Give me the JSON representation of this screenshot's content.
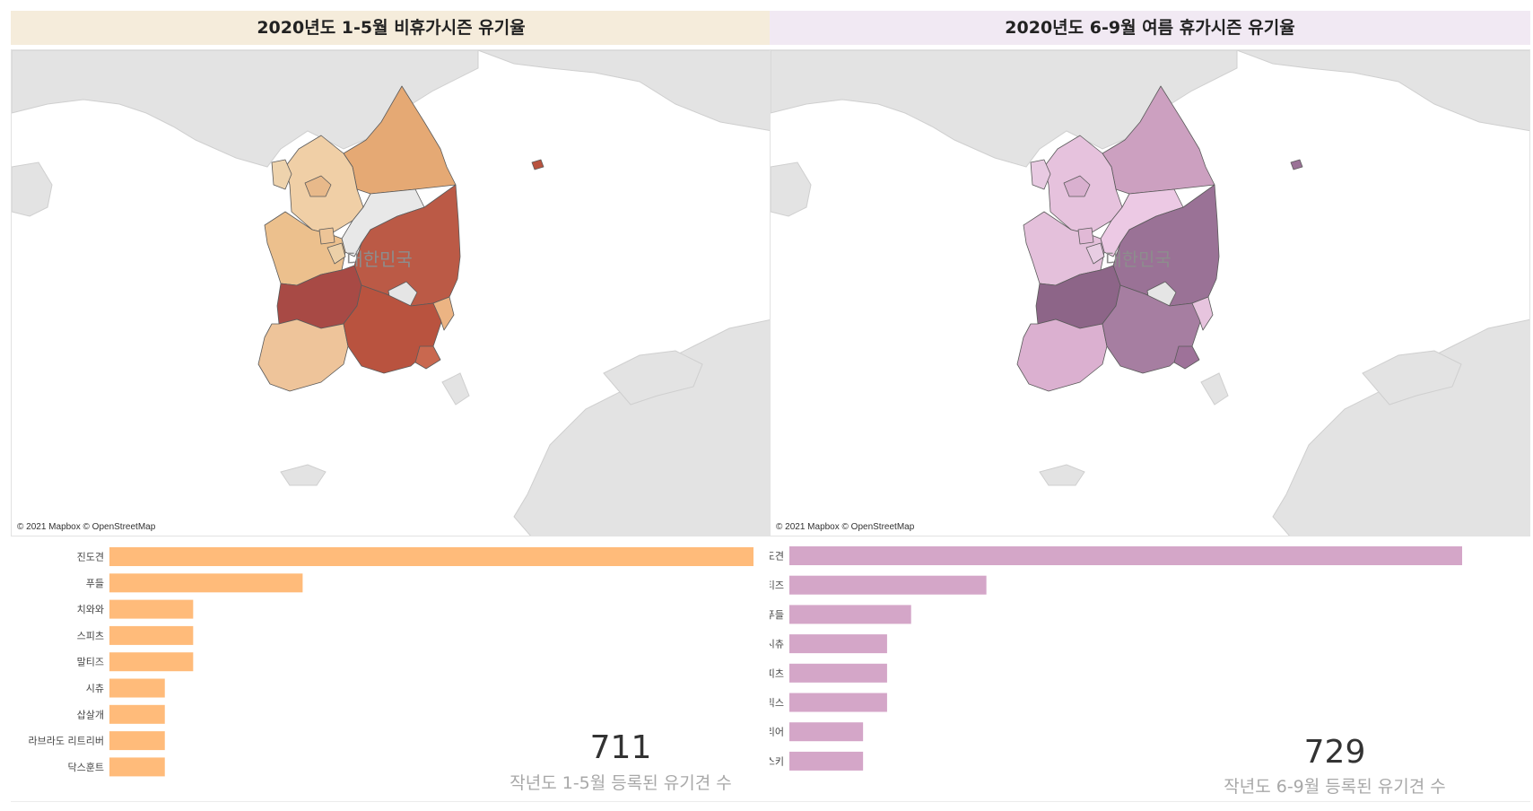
{
  "colors": {
    "left_title_bg": "#f5ecdb",
    "right_title_bg": "#f1e9f3",
    "left_bar": "#ffbb7a",
    "right_bar": "#d4a6c8",
    "land": "#e3e3e3",
    "water": "#ffffff"
  },
  "panels": [
    {
      "title": "2020년도 1-5월 비휴가시즌 유기율",
      "map": {
        "country_label": "대한민국",
        "attribution": "© 2021 Mapbox © OpenStreetMap",
        "region_colors": {
          "gangwon": "#e5a974",
          "gyeonggi": "#f0cfa6",
          "seoul": "#e8b98a",
          "incheon": "#eed3ad",
          "chungbuk": "#e8e8e8",
          "chungnam": "#ecc08d",
          "daejeon": "#ecd0a8",
          "sejong": "#edc497",
          "gyeongbuk": "#bb5a46",
          "daegu": "#e5e5e5",
          "jeonbuk": "#a84a45",
          "gwangju": "#ecc9a0",
          "jeonnam": "#eec49a",
          "gyeongnam": "#b9533f",
          "ulsan": "#ecb483",
          "busan": "#c9684f",
          "ulleung": "#b9533f"
        }
      },
      "chart_data": {
        "type": "bar",
        "categories": [
          "진도견",
          "푸들",
          "치와와",
          "스피츠",
          "말티즈",
          "시츄",
          "삽살개",
          "라브라도 리트리버",
          "닥스훈트"
        ],
        "values": [
          50,
          15,
          6.5,
          6.5,
          6.5,
          4.3,
          4.3,
          4.3,
          4.3
        ],
        "xlim": [
          0,
          50
        ]
      },
      "kpi": {
        "value": "711",
        "label": "작년도 1-5월 등록된 유기견 수"
      }
    },
    {
      "title": "2020년도 6-9월 여름 휴가시즌 유기율",
      "map": {
        "country_label": "대한민국",
        "attribution": "© 2021 Mapbox © OpenStreetMap",
        "region_colors": {
          "gangwon": "#cca0c0",
          "gyeonggi": "#e6c2dd",
          "seoul": "#d9b0cf",
          "incheon": "#e8cae2",
          "chungbuk": "#ecc9e4",
          "chungnam": "#e4c0db",
          "daejeon": "#e8cde3",
          "sejong": "#e1b9d6",
          "gyeongbuk": "#9a7296",
          "daegu": "#e5e5e5",
          "jeonbuk": "#8d6588",
          "gwangju": "#e3c1da",
          "jeonnam": "#dbb0d0",
          "gyeongnam": "#a67ea1",
          "ulsan": "#e7c4de",
          "busan": "#9e7299",
          "ulleung": "#9a7296"
        }
      },
      "chart_data": {
        "type": "bar",
        "categories": [
          "진도견",
          "말티즈",
          "푸들",
          "시츄",
          "스피츠",
          "믹스",
          "요크셔 테리어",
          "시베리안 허스키"
        ],
        "values": [
          42,
          12.3,
          7.6,
          6.1,
          6.1,
          6.1,
          4.6,
          4.6
        ],
        "xlim": [
          0,
          42
        ]
      },
      "kpi": {
        "value": "729",
        "label": "작년도 6-9월 등록된 유기견 수"
      }
    }
  ]
}
